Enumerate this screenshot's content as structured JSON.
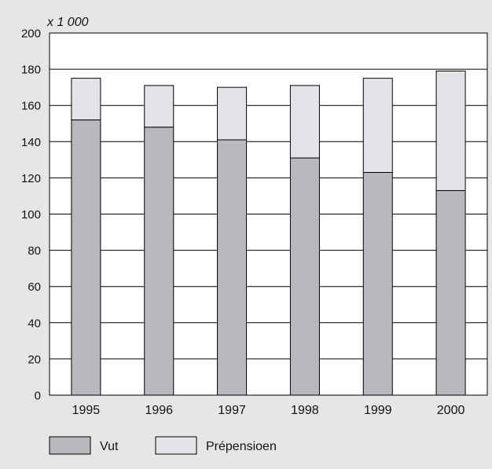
{
  "chart_data": {
    "type": "bar",
    "stacked": true,
    "unit_label": "x 1 000",
    "categories": [
      "1995",
      "1996",
      "1997",
      "1998",
      "1999",
      "2000"
    ],
    "series": [
      {
        "name": "Vut",
        "color": "#b9b9bd",
        "values": [
          152,
          148,
          141,
          131,
          123,
          113
        ]
      },
      {
        "name": "Prépensioen",
        "color": "#e3e4e7",
        "values": [
          23,
          23,
          29,
          40,
          52,
          66
        ]
      }
    ],
    "ylim": [
      0,
      200
    ],
    "yticks": [
      "0",
      "20",
      "40",
      "60",
      "80",
      "100",
      "120",
      "140",
      "160",
      "180",
      "200"
    ],
    "grid": true,
    "legend_position": "bottom-left"
  }
}
